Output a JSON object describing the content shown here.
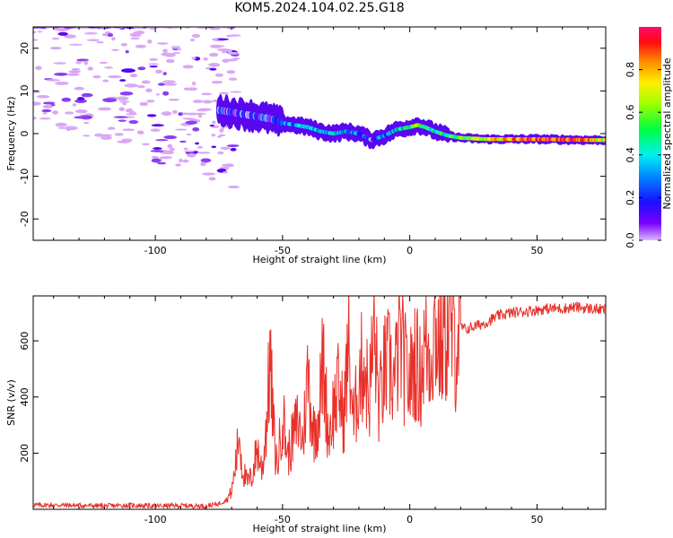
{
  "title": "KOM5.2024.104.02.25.G18",
  "colors": {
    "snr_line": "#e8312b",
    "blob_light": "#d9a8f5",
    "blob_mid": "#8a3ff0",
    "blob_dark": "#5a06ef"
  },
  "chart_data": [
    {
      "type": "heatmap",
      "title": "KOM5.2024.104.02.25.G18",
      "xlabel": "Height of straight line (km)",
      "ylabel": "Frequency (Hz)",
      "xlim": [
        -148,
        77
      ],
      "ylim": [
        -25,
        25
      ],
      "xticks": [
        -100,
        -50,
        0,
        50
      ],
      "yticks": [
        -20,
        -10,
        0,
        10,
        20
      ],
      "colorbar": {
        "label": "Normalized spectral amplitude",
        "range": [
          0,
          1
        ],
        "ticks": [
          "0.0",
          "0.2",
          "0.4",
          "0.6",
          "0.8"
        ],
        "colormap": "gist_rainbow_r"
      },
      "ridge": {
        "x": [
          -75,
          -70,
          -65,
          -60,
          -55,
          -50,
          -45,
          -40,
          -35,
          -30,
          -25,
          -20,
          -15,
          -10,
          -5,
          0,
          3,
          6,
          10,
          15,
          20,
          30,
          40,
          50,
          60,
          70,
          77
        ],
        "y": [
          5.5,
          5,
          4.5,
          4,
          3.5,
          2.5,
          2,
          1.5,
          0.5,
          0,
          0.5,
          0,
          -1.5,
          -0.5,
          1,
          1.5,
          2,
          1.5,
          0.5,
          -0.5,
          -1,
          -1.3,
          -1.3,
          -1.3,
          -1.4,
          -1.5,
          -1.5
        ],
        "amplitude": [
          0.1,
          0.12,
          0.12,
          0.14,
          0.15,
          0.25,
          0.3,
          0.35,
          0.32,
          0.4,
          0.35,
          0.3,
          0.12,
          0.3,
          0.35,
          0.45,
          0.6,
          0.5,
          0.45,
          0.5,
          0.55,
          0.65,
          0.85,
          0.9,
          0.88,
          0.85,
          0.6
        ]
      }
    },
    {
      "type": "line",
      "xlabel": "Height of straight line (km)",
      "ylabel": "SNR (v/v)",
      "xlim": [
        -148,
        77
      ],
      "ylim": [
        0,
        760
      ],
      "xticks": [
        -100,
        -50,
        0,
        50
      ],
      "yticks": [
        200,
        400,
        600
      ],
      "series": [
        {
          "x": [
            -148,
            -140,
            -130,
            -120,
            -110,
            -100,
            -90,
            -80,
            -75,
            -72,
            -70,
            -68,
            -67,
            -66,
            -64,
            -62,
            -60,
            -58,
            -56,
            -55,
            -53,
            -52,
            -50,
            -48,
            -46,
            -44,
            -42,
            -40,
            -38,
            -36,
            -34,
            -32,
            -30,
            -28,
            -26,
            -24,
            -22,
            -20,
            -18,
            -16,
            -14,
            -12,
            -10,
            -8,
            -6,
            -4,
            -2,
            0,
            2,
            4,
            6,
            8,
            10,
            12,
            14,
            16,
            18,
            20,
            22,
            25,
            30,
            35,
            40,
            45,
            50,
            55,
            60,
            65,
            70,
            77
          ],
          "y": [
            15,
            15,
            14,
            12,
            14,
            12,
            13,
            12,
            20,
            35,
            60,
            180,
            270,
            150,
            90,
            110,
            210,
            130,
            330,
            510,
            200,
            150,
            330,
            180,
            240,
            300,
            230,
            470,
            260,
            310,
            510,
            250,
            340,
            410,
            310,
            560,
            280,
            450,
            500,
            380,
            600,
            350,
            470,
            490,
            430,
            580,
            480,
            430,
            520,
            450,
            560,
            530,
            620,
            550,
            600,
            620,
            560,
            650,
            640,
            650,
            665,
            690,
            700,
            705,
            710,
            715,
            715,
            720,
            715,
            710
          ]
        }
      ]
    }
  ]
}
